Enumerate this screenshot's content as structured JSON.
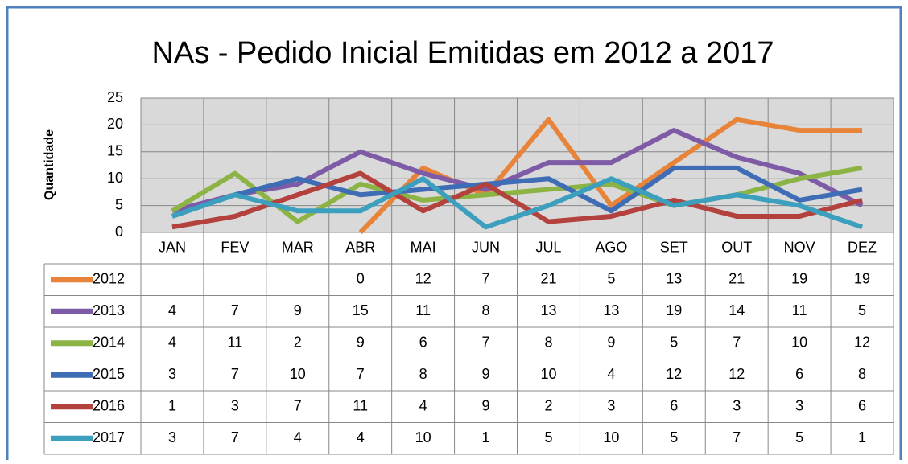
{
  "chart_data": {
    "type": "line",
    "title": "NAs - Pedido Inicial Emitidas em 2012 a 2017",
    "y_label": "Quantidade",
    "categories": [
      "JAN",
      "FEV",
      "MAR",
      "ABR",
      "MAI",
      "JUN",
      "JUL",
      "AGO",
      "SET",
      "OUT",
      "NOV",
      "DEZ"
    ],
    "series": [
      {
        "name": "2012",
        "color": "#e8833a",
        "values": [
          null,
          null,
          null,
          0,
          12,
          7,
          21,
          5,
          13,
          21,
          19,
          19
        ]
      },
      {
        "name": "2013",
        "color": "#7d5ba6",
        "values": [
          4,
          7,
          9,
          15,
          11,
          8,
          13,
          13,
          19,
          14,
          11,
          5
        ]
      },
      {
        "name": "2014",
        "color": "#8cb445",
        "values": [
          4,
          11,
          2,
          9,
          6,
          7,
          8,
          9,
          5,
          7,
          10,
          12
        ]
      },
      {
        "name": "2015",
        "color": "#3e6db5",
        "values": [
          3,
          7,
          10,
          7,
          8,
          9,
          10,
          4,
          12,
          12,
          6,
          8
        ]
      },
      {
        "name": "2016",
        "color": "#b3423f",
        "values": [
          1,
          3,
          7,
          11,
          4,
          9,
          2,
          3,
          6,
          3,
          3,
          6
        ]
      },
      {
        "name": "2017",
        "color": "#3c9fbd",
        "values": [
          3,
          7,
          4,
          4,
          10,
          1,
          5,
          10,
          5,
          7,
          5,
          1
        ]
      }
    ],
    "ylim": [
      0,
      25
    ],
    "yticks": [
      0,
      5,
      10,
      15,
      20,
      25
    ],
    "grid": true,
    "data_table": true
  }
}
